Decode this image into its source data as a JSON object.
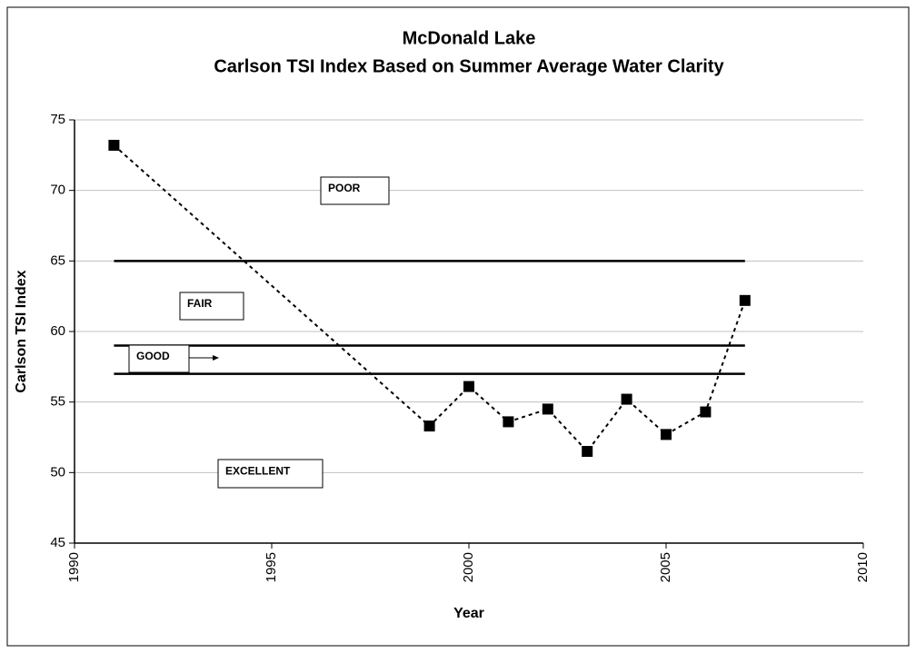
{
  "chart_data": {
    "type": "scatter",
    "title": "McDonald Lake",
    "subtitle": "Carlson TSI Index Based on Summer Average Water Clarity",
    "x_label": "Year",
    "y_label": "Carlson TSI Index",
    "x": [
      1991,
      1999,
      2000,
      2001,
      2002,
      2003,
      2004,
      2005,
      2006,
      2007
    ],
    "series": [
      {
        "name": "Carlson TSI",
        "color": "#000000",
        "values": [
          73.2,
          53.3,
          56.1,
          53.6,
          54.5,
          51.5,
          55.2,
          52.7,
          54.3,
          62.2
        ]
      }
    ],
    "reference_lines": [
      65,
      59,
      57
    ],
    "reference_xlim": [
      1991,
      2007
    ],
    "annotations": [
      "POOR",
      "FAIR",
      "GOOD",
      "EXCELLENT"
    ],
    "xlim": [
      1990,
      2010
    ],
    "xticks": [
      1990,
      1995,
      2000,
      2005,
      2010
    ],
    "ylim": [
      45,
      75
    ],
    "yticks": [
      45,
      50,
      55,
      60,
      65,
      70,
      75
    ],
    "grid": true
  }
}
